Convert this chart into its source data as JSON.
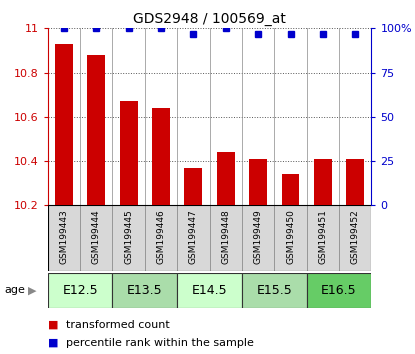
{
  "title": "GDS2948 / 100569_at",
  "samples": [
    "GSM199443",
    "GSM199444",
    "GSM199445",
    "GSM199446",
    "GSM199447",
    "GSM199448",
    "GSM199449",
    "GSM199450",
    "GSM199451",
    "GSM199452"
  ],
  "red_values": [
    10.93,
    10.88,
    10.67,
    10.64,
    10.37,
    10.44,
    10.41,
    10.34,
    10.41,
    10.41
  ],
  "blue_values": [
    100,
    100,
    100,
    100,
    97,
    100,
    97,
    97,
    97,
    97
  ],
  "ylim_left": [
    10.2,
    11.0
  ],
  "ylim_right": [
    0,
    100
  ],
  "yticks_left": [
    10.2,
    10.4,
    10.6,
    10.8,
    11.0
  ],
  "ytick_left_labels": [
    "10.2",
    "10.4",
    "10.6",
    "10.8",
    "11"
  ],
  "yticks_right": [
    0,
    25,
    50,
    75,
    100
  ],
  "ytick_right_labels": [
    "0",
    "25",
    "50",
    "75",
    "100%"
  ],
  "bar_color": "#cc0000",
  "dot_color": "#0000cc",
  "age_groups": [
    {
      "label": "E12.5",
      "samples": [
        0,
        1
      ],
      "color": "#ccffcc"
    },
    {
      "label": "E13.5",
      "samples": [
        2,
        3
      ],
      "color": "#aaddaa"
    },
    {
      "label": "E14.5",
      "samples": [
        4,
        5
      ],
      "color": "#ccffcc"
    },
    {
      "label": "E15.5",
      "samples": [
        6,
        7
      ],
      "color": "#aaddaa"
    },
    {
      "label": "E16.5",
      "samples": [
        8,
        9
      ],
      "color": "#66cc66"
    }
  ],
  "bar_width": 0.55,
  "label_box_color": "#d8d8d8",
  "label_box_edge": "#888888",
  "grid_color": "#555555",
  "spine_color": "#000000"
}
